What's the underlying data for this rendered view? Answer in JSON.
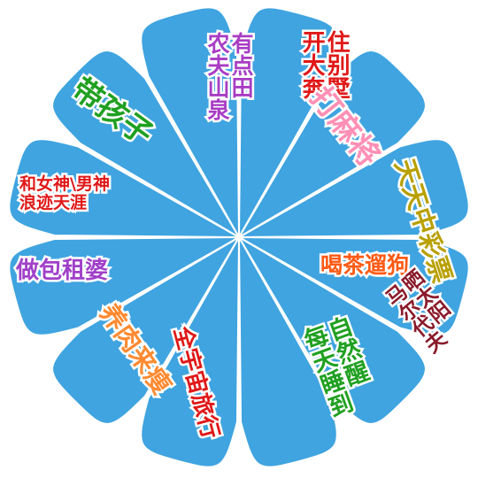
{
  "colors": {
    "petal_fill": "#3fa4e0",
    "petal_stroke": "#ffffff",
    "spoke": "#ffffff"
  },
  "petals": [
    {
      "id": "rural-farm",
      "text": "有点田\n农夫山泉",
      "color": "#a83dc4",
      "vertical": true
    },
    {
      "id": "villa",
      "text": "住别墅\n开大奔",
      "color": "#e01818",
      "vertical": true
    },
    {
      "id": "mahjong",
      "text": "打麻将",
      "color": "#ff8fb4",
      "vertical": false
    },
    {
      "id": "lottery",
      "text": "天天中彩票",
      "color": "#b8a000",
      "vertical": false
    },
    {
      "id": "tea-dog",
      "text": "喝茶遛狗",
      "color": "#ff5a14",
      "vertical": false
    },
    {
      "id": "sunbathe",
      "text": "晒太阳\n马尔代夫",
      "color": "#8a1a2a",
      "vertical": true
    },
    {
      "id": "sleep",
      "text": "自然醒\n每天睡到",
      "color": "#20a020",
      "vertical": true
    },
    {
      "id": "travel",
      "text": "全宇宙旅行",
      "color": "#e01818",
      "vertical": false
    },
    {
      "id": "fitness",
      "text": "养肉来瘦",
      "color": "#ff8a30",
      "vertical": false
    },
    {
      "id": "landlady",
      "text": "做包租婆",
      "color": "#a040c8",
      "vertical": false
    },
    {
      "id": "wander",
      "text": "和女神\\男神\n浪迹天涯",
      "color": "#e01818",
      "vertical": false
    },
    {
      "id": "kids",
      "text": "带孩子",
      "color": "#20a020",
      "vertical": false
    }
  ]
}
